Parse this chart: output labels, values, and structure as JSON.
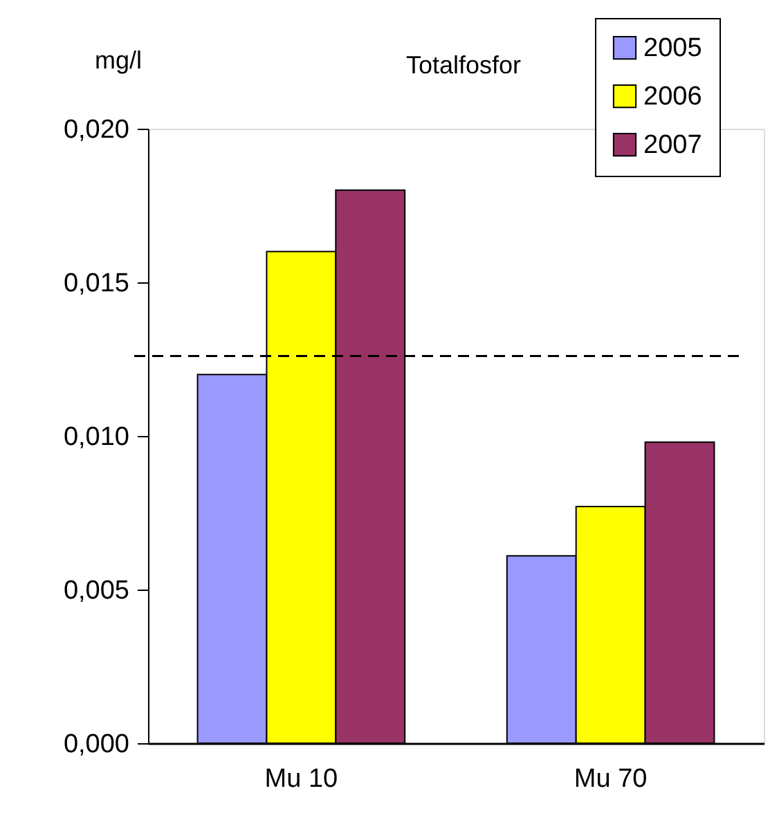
{
  "chart_data": {
    "type": "bar",
    "title": "Totalfosfor",
    "ylabel": "mg/l",
    "categories": [
      "Mu 10",
      "Mu 70"
    ],
    "series": [
      {
        "name": "2005",
        "color": "#9999ff",
        "values": [
          0.012,
          0.0061
        ]
      },
      {
        "name": "2006",
        "color": "#ffff00",
        "values": [
          0.016,
          0.0077
        ]
      },
      {
        "name": "2007",
        "color": "#993366",
        "values": [
          0.018,
          0.0098
        ]
      }
    ],
    "ylim": [
      0,
      0.02
    ],
    "yticks": [
      {
        "value": 0,
        "label": "0,000"
      },
      {
        "value": 0.005,
        "label": "0,005"
      },
      {
        "value": 0.01,
        "label": "0,010"
      },
      {
        "value": 0.015,
        "label": "0,015"
      },
      {
        "value": 0.02,
        "label": "0,020"
      }
    ],
    "ref_lines": [
      {
        "axis": "y",
        "value": 0.0126,
        "line_style": "dashed"
      }
    ],
    "grid": false,
    "legend": "top right"
  }
}
